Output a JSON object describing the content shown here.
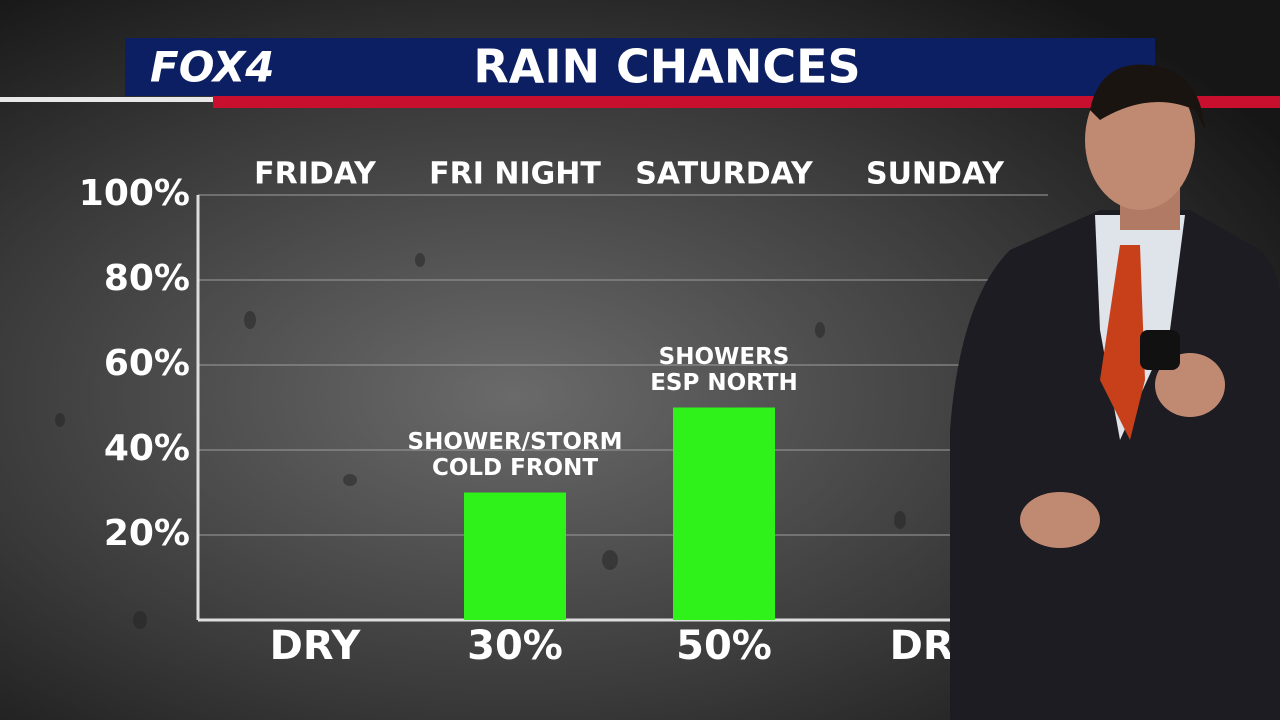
{
  "logo": "FOX4",
  "chart_data": {
    "type": "bar",
    "title": "RAIN CHANCES",
    "categories": [
      "FRIDAY",
      "FRI NIGHT",
      "SATURDAY",
      "SUNDAY"
    ],
    "values": [
      0,
      30,
      50,
      0
    ],
    "value_labels": [
      "DRY",
      "30%",
      "50%",
      "DRY"
    ],
    "annotations": [
      null,
      [
        "SHOWER/STORM",
        "COLD FRONT"
      ],
      [
        "SHOWERS",
        "ESP NORTH"
      ],
      null
    ],
    "color": "#2ef21a",
    "ylim": [
      0,
      100
    ],
    "yticks": [
      {
        "value": 20,
        "label": "20%"
      },
      {
        "value": 40,
        "label": "40%"
      },
      {
        "value": 60,
        "label": "60%"
      },
      {
        "value": 80,
        "label": "80%"
      },
      {
        "value": 100,
        "label": "100%"
      }
    ],
    "grid": true
  }
}
